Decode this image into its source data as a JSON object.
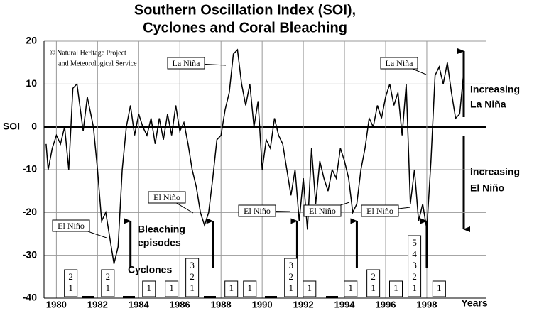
{
  "chart_data": {
    "type": "line",
    "title": "Southern Oscillation Index (SOI),",
    "subtitle": "Cyclones and Coral Bleaching",
    "y_label": "SOI",
    "x_label": "Years",
    "copyright": [
      "© Natural Heritage Project",
      "and Meteorological Service"
    ],
    "xlim": [
      1979.4,
      2000.9
    ],
    "ylim": [
      -40,
      20
    ],
    "xticks": [
      1980,
      1982,
      1984,
      1986,
      1988,
      1990,
      1992,
      1994,
      1996,
      1998
    ],
    "yticks": [
      -40,
      -30,
      -20,
      -10,
      0,
      10,
      20
    ],
    "color": "#000000",
    "grid": true,
    "x": [
      1979.5,
      1979.6,
      1979.8,
      1980.0,
      1980.2,
      1980.4,
      1980.6,
      1980.8,
      1981.0,
      1981.3,
      1981.5,
      1981.8,
      1982.0,
      1982.2,
      1982.4,
      1982.6,
      1982.8,
      1983.0,
      1983.2,
      1983.4,
      1983.6,
      1983.8,
      1984.0,
      1984.2,
      1984.4,
      1984.6,
      1984.8,
      1985.0,
      1985.2,
      1985.4,
      1985.6,
      1985.8,
      1986.0,
      1986.2,
      1986.4,
      1986.6,
      1986.8,
      1987.0,
      1987.2,
      1987.4,
      1987.6,
      1987.8,
      1988.0,
      1988.2,
      1988.4,
      1988.6,
      1988.8,
      1989.0,
      1989.2,
      1989.4,
      1989.6,
      1989.8,
      1990.0,
      1990.2,
      1990.4,
      1990.6,
      1990.8,
      1991.0,
      1991.2,
      1991.4,
      1991.6,
      1991.8,
      1992.0,
      1992.2,
      1992.4,
      1992.6,
      1992.8,
      1993.0,
      1993.2,
      1993.4,
      1993.6,
      1993.8,
      1994.0,
      1994.2,
      1994.4,
      1994.6,
      1994.8,
      1995.0,
      1995.2,
      1995.4,
      1995.6,
      1995.8,
      1996.0,
      1996.2,
      1996.4,
      1996.6,
      1996.8,
      1997.0,
      1997.2,
      1997.4,
      1997.6,
      1997.8,
      1998.0,
      1998.2,
      1998.4,
      1998.6,
      1998.8,
      1999.0,
      1999.2,
      1999.4,
      1999.6,
      1999.8
    ],
    "values": [
      -4,
      -10,
      -5,
      -2,
      -4,
      0,
      -10,
      9,
      10,
      -1,
      7,
      0,
      -10,
      -22,
      -20,
      -26,
      -32,
      -28,
      -10,
      0,
      5,
      -2,
      3,
      0,
      -2,
      2,
      -4,
      2,
      -3,
      3,
      -2,
      5,
      -1,
      1,
      -4,
      -10,
      -14,
      -20,
      -23,
      -20,
      -12,
      -3,
      -2,
      4,
      8,
      17,
      18,
      10,
      5,
      10,
      0,
      6,
      -10,
      -3,
      -5,
      2,
      -2,
      -4,
      -10,
      -16,
      -10,
      -22,
      -12,
      -24,
      -5,
      -18,
      -8,
      -12,
      -15,
      -10,
      -12,
      -5,
      -8,
      -12,
      -20,
      -18,
      -10,
      -5,
      2,
      0,
      5,
      2,
      7,
      10,
      5,
      8,
      -2,
      10,
      -18,
      -10,
      -22,
      -18,
      -24,
      -8,
      12,
      14,
      10,
      15,
      8,
      2,
      3,
      13
    ],
    "annotations": [
      "La Niña",
      "La Niña",
      "El Niño",
      "El Niño",
      "El Niño",
      "El Niño",
      "El Niño"
    ],
    "bleaching_label": [
      "Bleaching",
      "episodes"
    ],
    "bleaching_episodes": [
      1983.6,
      1987.6,
      1991.7,
      1994.6,
      1998.0
    ],
    "cyclones_label": "Cyclones",
    "cyclones": [
      {
        "x": 1980.7,
        "numbers": [
          2,
          1
        ]
      },
      {
        "x": 1982.5,
        "numbers": [
          2,
          1
        ]
      },
      {
        "x": 1984.5,
        "numbers": [
          1
        ]
      },
      {
        "x": 1985.6,
        "numbers": [
          1
        ]
      },
      {
        "x": 1986.6,
        "numbers": [
          3,
          2,
          1
        ]
      },
      {
        "x": 1988.5,
        "numbers": [
          1
        ]
      },
      {
        "x": 1989.4,
        "numbers": [
          1
        ]
      },
      {
        "x": 1991.4,
        "numbers": [
          3,
          2,
          1
        ]
      },
      {
        "x": 1992.3,
        "numbers": [
          1
        ]
      },
      {
        "x": 1994.3,
        "numbers": [
          1
        ]
      },
      {
        "x": 1995.4,
        "numbers": [
          2,
          1
        ]
      },
      {
        "x": 1996.5,
        "numbers": [
          1
        ]
      },
      {
        "x": 1997.4,
        "numbers": [
          5,
          4,
          3,
          2,
          1
        ]
      },
      {
        "x": 1998.6,
        "numbers": [
          1
        ]
      }
    ],
    "side_labels": [
      [
        "Increasing",
        "La Niña"
      ],
      [
        "Increasing",
        "El Niño"
      ]
    ]
  }
}
